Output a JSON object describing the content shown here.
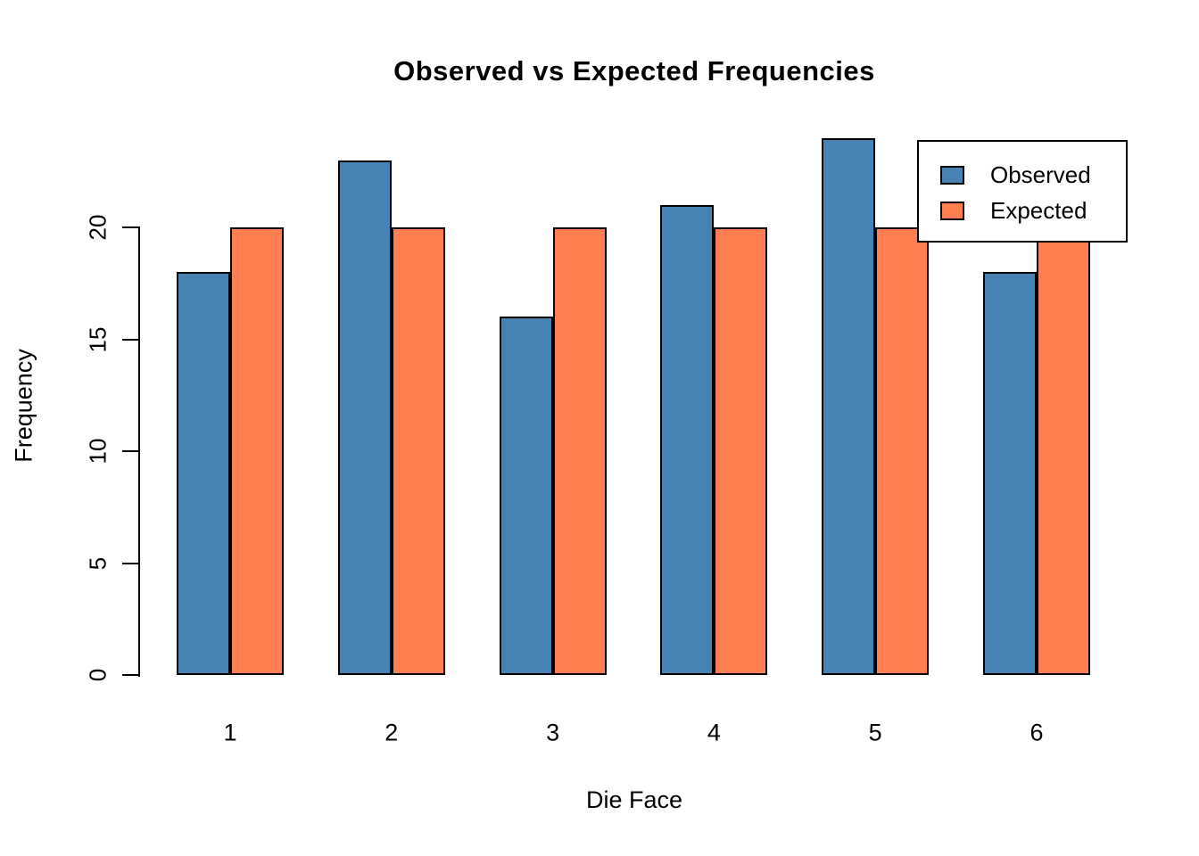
{
  "chart_data": {
    "type": "bar",
    "title": "Observed vs Expected Frequencies",
    "xlabel": "Die Face",
    "ylabel": "Frequency",
    "categories": [
      "1",
      "2",
      "3",
      "4",
      "5",
      "6"
    ],
    "series": [
      {
        "name": "Observed",
        "color": "#4682B4",
        "values": [
          18,
          23,
          16,
          21,
          24,
          18
        ]
      },
      {
        "name": "Expected",
        "color": "#FF7F50",
        "values": [
          20,
          20,
          20,
          20,
          20,
          20
        ]
      }
    ],
    "yticks": [
      0,
      5,
      10,
      15,
      20
    ],
    "ylim": [
      0,
      24
    ],
    "grid": false,
    "legend_position": "top-right",
    "bar_border_color": "#000000",
    "background_color": "#FFFFFF"
  }
}
